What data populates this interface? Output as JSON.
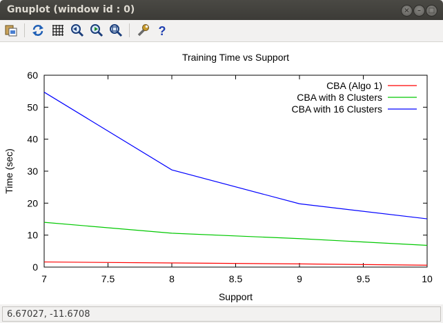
{
  "window": {
    "title": "Gnuplot (window id : 0)",
    "controls": [
      "close",
      "minimize",
      "maximize"
    ]
  },
  "toolbar": {
    "buttons": [
      {
        "name": "copy-to-clipboard-icon"
      },
      {
        "name": "replot-icon"
      },
      {
        "name": "grid-icon"
      },
      {
        "name": "previous-zoom-icon"
      },
      {
        "name": "next-zoom-icon"
      },
      {
        "name": "autoscale-icon"
      },
      {
        "name": "settings-icon"
      },
      {
        "name": "help-icon"
      }
    ]
  },
  "chart_data": {
    "type": "line",
    "title": "Training Time vs Support",
    "xlabel": "Support",
    "ylabel": "Time (sec)",
    "xlim": [
      7,
      10
    ],
    "ylim": [
      0,
      60
    ],
    "xticks": [
      "7",
      "7.5",
      "8",
      "8.5",
      "9",
      "9.5",
      "10"
    ],
    "yticks": [
      "0",
      "10",
      "20",
      "30",
      "40",
      "50",
      "60"
    ],
    "grid": false,
    "legend_position": "top-right",
    "x": [
      7,
      8,
      9,
      10
    ],
    "series": [
      {
        "name": "CBA (Algo 1)",
        "color": "#ff0000",
        "values": [
          1.6,
          1.3,
          1.0,
          0.6
        ]
      },
      {
        "name": "CBA with 8 Clusters",
        "color": "#00c800",
        "values": [
          14.0,
          10.6,
          8.9,
          6.8
        ]
      },
      {
        "name": "CBA with 16 Clusters",
        "color": "#0000ff",
        "values": [
          54.7,
          30.4,
          19.8,
          15.1
        ]
      }
    ]
  },
  "status": {
    "coords": "6.67027, -11.6708"
  }
}
